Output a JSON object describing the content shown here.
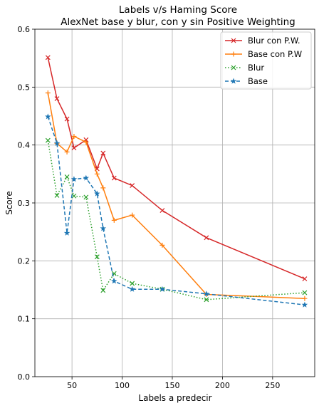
{
  "chart_data": {
    "type": "line",
    "title": "Labels v/s Haming Score",
    "subtitle": "AlexNet base y blur, con y sin Positive Weighting",
    "xlabel": "Labels a predecir",
    "ylabel": "Score",
    "xlim": [
      13,
      292
    ],
    "ylim": [
      0,
      0.6
    ],
    "xticks": [
      50,
      100,
      150,
      200,
      250
    ],
    "xtick_labels": [
      "50",
      "100",
      "150",
      "200",
      "250"
    ],
    "yticks": [
      0.0,
      0.1,
      0.2,
      0.3,
      0.4,
      0.5,
      0.6
    ],
    "ytick_labels": [
      "0.0",
      "0.1",
      "0.2",
      "0.3",
      "0.4",
      "0.5",
      "0.6"
    ],
    "grid": true,
    "legend_position": "top-right",
    "x": [
      26,
      35,
      45,
      52,
      64,
      75,
      81,
      92,
      110,
      140,
      184,
      282
    ],
    "series": [
      {
        "name": "Blur con P.W.",
        "color": "#d62728",
        "linestyle": "solid",
        "marker": "x",
        "values": [
          0.551,
          0.48,
          0.445,
          0.395,
          0.409,
          0.359,
          0.386,
          0.343,
          0.33,
          0.287,
          0.24,
          0.169
        ]
      },
      {
        "name": "Base con P.W",
        "color": "#ff7f0e",
        "linestyle": "solid",
        "marker": "plus",
        "values": [
          0.49,
          0.403,
          0.388,
          0.415,
          0.405,
          0.35,
          0.326,
          0.27,
          0.279,
          0.227,
          0.142,
          0.135
        ]
      },
      {
        "name": "Blur",
        "color": "#2ca02c",
        "linestyle": "dotted",
        "marker": "x",
        "values": [
          0.408,
          0.313,
          0.345,
          0.312,
          0.31,
          0.207,
          0.149,
          0.178,
          0.161,
          0.151,
          0.133,
          0.145
        ]
      },
      {
        "name": "Base",
        "color": "#1f77b4",
        "linestyle": "dashed",
        "marker": "star",
        "values": [
          0.449,
          0.403,
          0.248,
          0.341,
          0.343,
          0.316,
          0.256,
          0.165,
          0.151,
          0.151,
          0.143,
          0.124
        ]
      }
    ]
  }
}
